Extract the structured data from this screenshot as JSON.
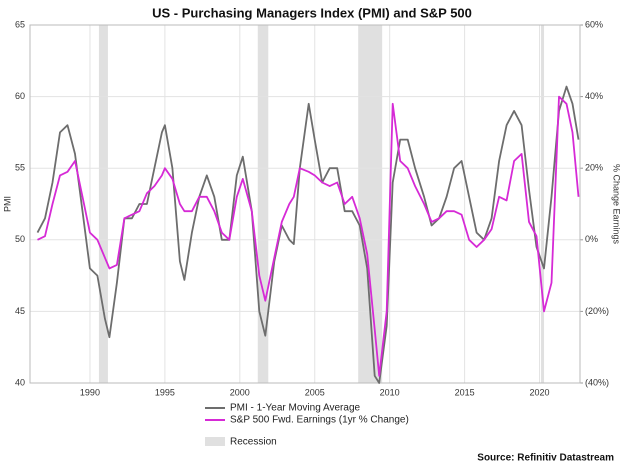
{
  "chart_data": {
    "type": "line",
    "title": "US - Purchasing Managers Index (PMI) and S&P 500",
    "y_label": "PMI",
    "y2_label": "% Change Earnings",
    "source": "Source: Refinitiv Datastream",
    "recession_label": "Recession",
    "recession_color": "#e0e0e0",
    "recessions": [
      [
        1990.6,
        1991.2
      ],
      [
        2001.2,
        2001.9
      ],
      [
        2007.9,
        2009.5
      ],
      [
        2020.1,
        2020.3
      ]
    ],
    "xlim": [
      1986,
      2022.7
    ],
    "xticks": [
      1990,
      1995,
      2000,
      2005,
      2010,
      2015,
      2020
    ],
    "ylim": [
      40,
      65
    ],
    "yticks": [
      40,
      45,
      50,
      55,
      60,
      65
    ],
    "y2lim": [
      -40,
      60
    ],
    "y2ticks": [
      {
        "value": -40,
        "label": "(40%)"
      },
      {
        "value": -20,
        "label": "(20%)"
      },
      {
        "value": 0,
        "label": "0%"
      },
      {
        "value": 20,
        "label": "20%"
      },
      {
        "value": 40,
        "label": "40%"
      },
      {
        "value": 60,
        "label": "60%"
      }
    ],
    "grid": true,
    "x": [
      1986.5,
      1987.0,
      1987.5,
      1988.0,
      1988.5,
      1989.0,
      1989.5,
      1990.0,
      1990.5,
      1991.0,
      1991.3,
      1991.8,
      1992.3,
      1992.8,
      1993.3,
      1993.8,
      1994.3,
      1994.8,
      1995.0,
      1995.5,
      1996.0,
      1996.3,
      1996.8,
      1997.3,
      1997.8,
      1998.3,
      1998.8,
      1999.3,
      1999.8,
      2000.2,
      2000.8,
      2001.3,
      2001.7,
      2002.3,
      2002.8,
      2003.3,
      2003.6,
      2004.0,
      2004.6,
      2005.0,
      2005.5,
      2006.0,
      2006.5,
      2007.0,
      2007.5,
      2008.0,
      2008.5,
      2009.0,
      2009.3,
      2009.8,
      2010.2,
      2010.7,
      2011.2,
      2011.7,
      2012.3,
      2012.8,
      2013.3,
      2013.8,
      2014.3,
      2014.8,
      2015.3,
      2015.8,
      2016.3,
      2016.8,
      2017.3,
      2017.8,
      2018.3,
      2018.8,
      2019.3,
      2019.8,
      2020.3,
      2020.8,
      2021.3,
      2021.8,
      2022.2,
      2022.6
    ],
    "series": [
      {
        "name": "PMI - 1-Year Moving Average",
        "color": "#6d6d6d",
        "values": [
          50.5,
          51.5,
          54,
          57.5,
          58,
          56,
          52,
          48,
          47.5,
          44.5,
          43.2,
          47,
          51.5,
          51.5,
          52.5,
          52.5,
          55,
          57.5,
          58,
          55,
          48.5,
          47.2,
          50.5,
          53,
          54.5,
          53,
          50,
          50,
          54.5,
          55.8,
          52,
          45,
          43.3,
          48.5,
          51,
          50,
          49.7,
          55,
          59.5,
          57,
          54,
          55,
          55,
          52,
          52,
          51,
          48,
          40.5,
          40,
          44,
          54,
          57,
          57,
          55,
          53,
          51,
          51.5,
          53,
          55,
          55.5,
          53,
          50.5,
          50,
          51.5,
          55.5,
          58,
          59,
          58,
          53.5,
          49.5,
          48,
          53,
          59,
          60.7,
          59.5,
          57
        ]
      },
      {
        "name": "S&P 500 Fwd. Earnings (1yr % Change)",
        "color": "#d62ad6",
        "axis": "y2",
        "values": [
          0,
          1,
          10,
          18,
          19,
          22,
          12,
          2,
          0,
          -5,
          -8,
          -7,
          6,
          7,
          8,
          13,
          15,
          18,
          20,
          17,
          10,
          8,
          8,
          12,
          12,
          8,
          2,
          0,
          12,
          17,
          8,
          -10,
          -17,
          -5,
          5,
          10,
          12,
          20,
          19,
          18,
          16,
          15,
          16,
          10,
          12,
          6,
          -4,
          -25,
          -38,
          -20,
          38,
          22,
          20,
          15,
          10,
          5,
          6,
          8,
          8,
          7,
          0,
          -2,
          0,
          3,
          12,
          11,
          22,
          24,
          5,
          1,
          -20,
          -12,
          40,
          38,
          30,
          12
        ]
      }
    ]
  }
}
